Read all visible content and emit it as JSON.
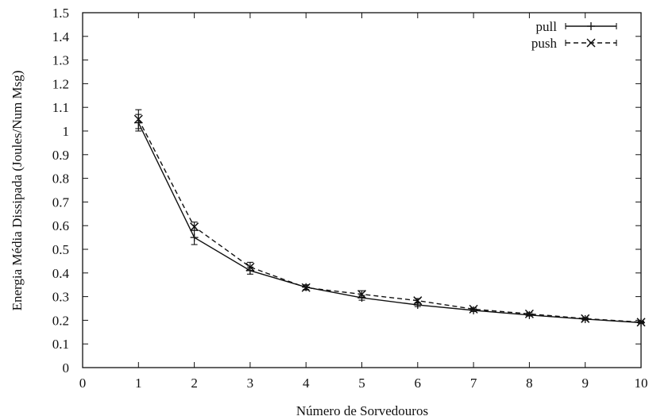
{
  "chart_data": {
    "type": "line",
    "title": "",
    "xlabel": "Número de Sorvedouros",
    "ylabel": "Energia Média Dissipada (Joules/Num Msg)",
    "xlim": [
      0,
      10
    ],
    "ylim": [
      0,
      1.5
    ],
    "xticks": [
      "0",
      "1",
      "2",
      "3",
      "4",
      "5",
      "6",
      "7",
      "8",
      "9",
      "10"
    ],
    "yticks": [
      "0",
      "0.1",
      "0.2",
      "0.3",
      "0.4",
      "0.5",
      "0.6",
      "0.7",
      "0.8",
      "0.9",
      "1",
      "1.1",
      "1.2",
      "1.3",
      "1.4",
      "1.5"
    ],
    "grid": false,
    "legend_position": "top-right",
    "x": [
      1,
      2,
      3,
      4,
      5,
      6,
      7,
      8,
      9,
      10
    ],
    "series": [
      {
        "name": "pull",
        "line_style": "solid",
        "marker": "plus",
        "values": [
          1.035,
          0.55,
          0.41,
          0.34,
          0.295,
          0.265,
          0.242,
          0.222,
          0.205,
          0.19
        ],
        "err_low": [
          1.0,
          0.52,
          0.395,
          0.33,
          0.285,
          0.258,
          0.237,
          0.218,
          0.201,
          0.187
        ],
        "err_high": [
          1.07,
          0.58,
          0.425,
          0.35,
          0.305,
          0.272,
          0.247,
          0.226,
          0.209,
          0.193
        ]
      },
      {
        "name": "push",
        "line_style": "dashed",
        "marker": "x",
        "values": [
          1.05,
          0.595,
          0.425,
          0.338,
          0.31,
          0.283,
          0.247,
          0.227,
          0.207,
          0.192
        ],
        "err_low": [
          1.01,
          0.58,
          0.41,
          0.328,
          0.298,
          0.275,
          0.242,
          0.222,
          0.203,
          0.188
        ],
        "err_high": [
          1.09,
          0.615,
          0.445,
          0.348,
          0.325,
          0.292,
          0.252,
          0.232,
          0.211,
          0.196
        ]
      }
    ]
  }
}
